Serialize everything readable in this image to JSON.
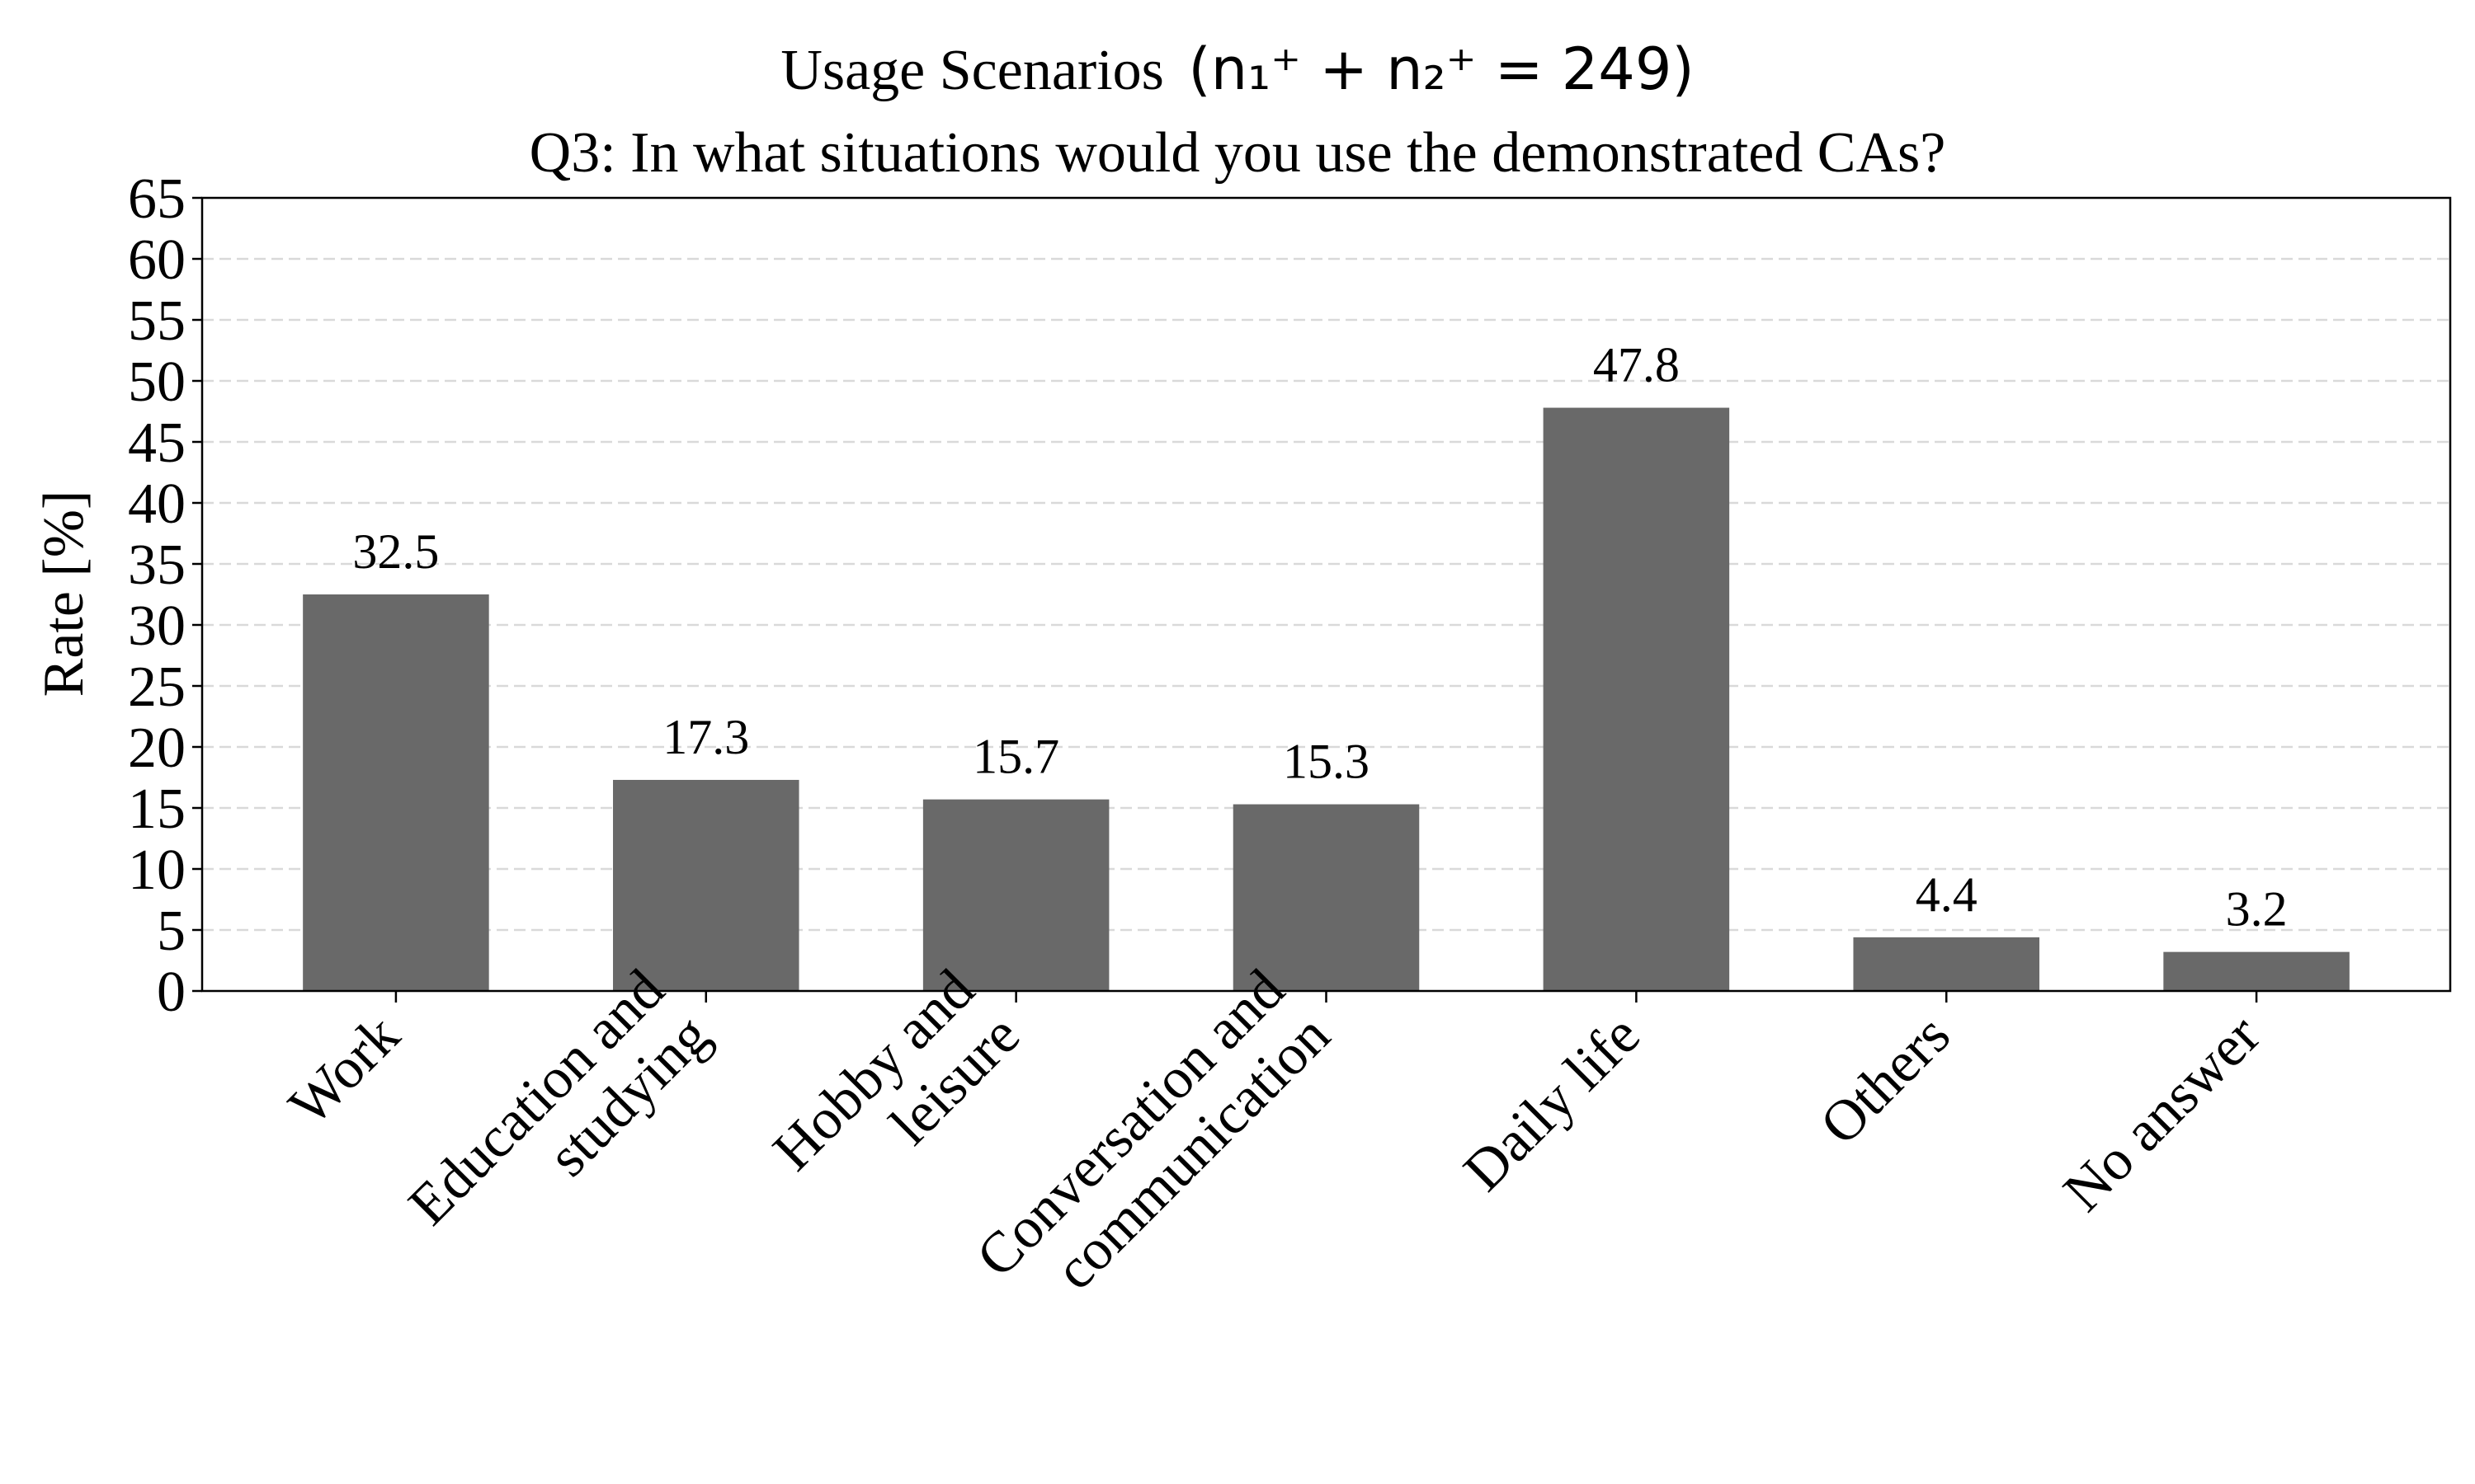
{
  "chart_data": {
    "type": "bar",
    "title_prefix": "Usage Scenarios",
    "title_math": "(n₁⁺ + n₂⁺ = 249)",
    "subtitle": "Q3: In what situations would you use the demonstrated CAs?",
    "xlabel": "",
    "ylabel": "Rate [%]",
    "ylim": [
      0,
      65
    ],
    "yticks": [
      0,
      5,
      10,
      15,
      20,
      25,
      30,
      35,
      40,
      45,
      50,
      55,
      60,
      65
    ],
    "grid": true,
    "bar_color": "#696969",
    "categories": [
      [
        "Work"
      ],
      [
        "Education and",
        "studying"
      ],
      [
        "Hobby and",
        "leisure"
      ],
      [
        "Conversation and",
        "communication"
      ],
      [
        "Daily life"
      ],
      [
        "Others"
      ],
      [
        "No answer"
      ]
    ],
    "values": [
      32.5,
      17.3,
      15.7,
      15.3,
      47.8,
      4.4,
      3.2
    ],
    "value_labels": [
      "32.5",
      "17.3",
      "15.7",
      "15.3",
      "47.8",
      "4.4",
      "3.2"
    ]
  }
}
